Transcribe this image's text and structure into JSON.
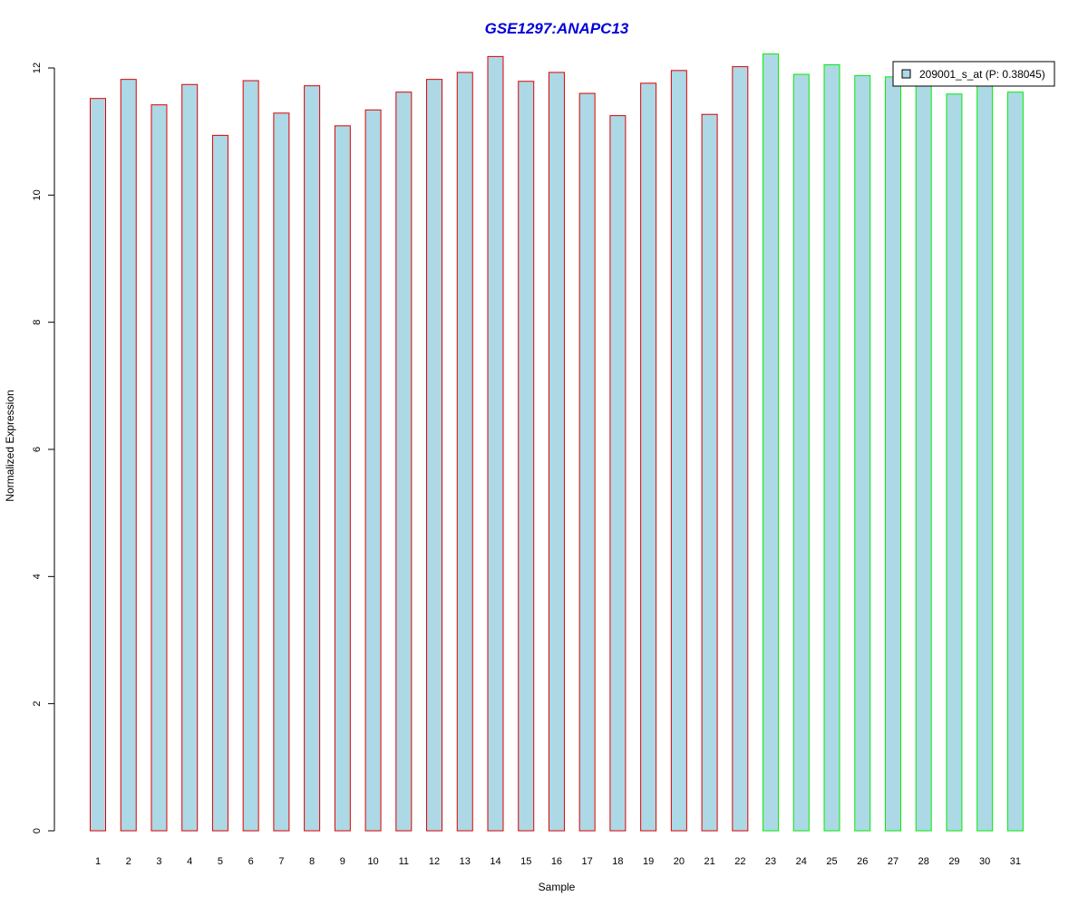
{
  "chart_data": {
    "type": "bar",
    "title": "GSE1297:ANAPC13",
    "xlabel": "Sample",
    "ylabel": "Normalized Expression",
    "ylim": [
      0,
      12.25
    ],
    "yticks": [
      0,
      2,
      4,
      6,
      8,
      10,
      12
    ],
    "grid": false,
    "categories": [
      "1",
      "2",
      "3",
      "4",
      "5",
      "6",
      "7",
      "8",
      "9",
      "10",
      "11",
      "12",
      "13",
      "14",
      "15",
      "16",
      "17",
      "18",
      "19",
      "20",
      "21",
      "22",
      "23",
      "24",
      "25",
      "26",
      "27",
      "28",
      "29",
      "30",
      "31"
    ],
    "series": [
      {
        "name": "209001_s_at (P: 0.38045)",
        "values": [
          11.52,
          11.82,
          11.42,
          11.74,
          10.94,
          11.8,
          11.29,
          11.72,
          11.09,
          11.34,
          11.62,
          11.82,
          11.93,
          12.18,
          11.79,
          11.93,
          11.6,
          11.25,
          11.76,
          11.96,
          11.27,
          12.02,
          12.22,
          11.9,
          12.05,
          11.88,
          11.86,
          11.77,
          11.59,
          11.78,
          11.62
        ]
      }
    ],
    "groups": [
      {
        "samples_from": 1,
        "samples_to": 22,
        "border_color": "#dd0000"
      },
      {
        "samples_from": 23,
        "samples_to": 31,
        "border_color": "#00ee00"
      }
    ],
    "legend_position": "top-right",
    "colors": {
      "bar_fill": "#add8e6",
      "title": "#0000dd"
    }
  }
}
